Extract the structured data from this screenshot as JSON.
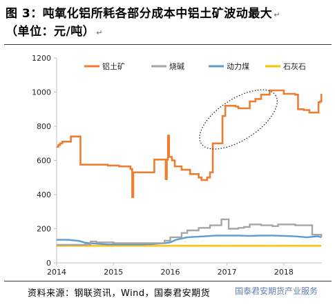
{
  "title": {
    "line1": "图 3：吨氧化铝所耗各部分成本中铝土矿波动最大",
    "line2": "（单位：元/吨）",
    "mark": "↵"
  },
  "source": "资料来源：钢联资讯，Wind，国泰君安期货",
  "watermark": "国泰君安期货产业服务",
  "chart_data": {
    "type": "line",
    "xlim": [
      2014.0,
      2018.67
    ],
    "ylim": [
      0,
      1200
    ],
    "x_ticks": [
      2014,
      2015,
      2016,
      2017,
      2018
    ],
    "x_tick_labels": [
      "2014",
      "2015",
      "2016",
      "2017",
      "2018"
    ],
    "y_ticks": [
      0,
      200,
      400,
      600,
      800,
      1000,
      1200
    ],
    "y_tick_labels": [
      "0",
      "200",
      "400",
      "600",
      "800",
      "1000",
      "1200"
    ],
    "legend_position": "top",
    "series": [
      {
        "name": "铝土矿",
        "color": "#ED7D31",
        "step": true,
        "points": [
          [
            2014.0,
            680
          ],
          [
            2014.03,
            690
          ],
          [
            2014.06,
            700
          ],
          [
            2014.1,
            710
          ],
          [
            2014.25,
            740
          ],
          [
            2014.4,
            740
          ],
          [
            2014.42,
            575
          ],
          [
            2014.8,
            575
          ],
          [
            2014.9,
            570
          ],
          [
            2015.1,
            565
          ],
          [
            2015.3,
            550
          ],
          [
            2015.33,
            385
          ],
          [
            2015.35,
            530
          ],
          [
            2015.7,
            530
          ],
          [
            2015.72,
            605
          ],
          [
            2015.9,
            605
          ],
          [
            2015.92,
            490
          ],
          [
            2015.94,
            605
          ],
          [
            2015.96,
            745
          ],
          [
            2015.98,
            620
          ],
          [
            2016.03,
            600
          ],
          [
            2016.08,
            565
          ],
          [
            2016.2,
            545
          ],
          [
            2016.35,
            520
          ],
          [
            2016.5,
            500
          ],
          [
            2016.55,
            485
          ],
          [
            2016.65,
            500
          ],
          [
            2016.7,
            530
          ],
          [
            2016.75,
            700
          ],
          [
            2016.9,
            700
          ],
          [
            2016.92,
            860
          ],
          [
            2016.97,
            920
          ],
          [
            2017.15,
            915
          ],
          [
            2017.2,
            905
          ],
          [
            2017.4,
            945
          ],
          [
            2017.5,
            960
          ],
          [
            2017.6,
            985
          ],
          [
            2017.75,
            1010
          ],
          [
            2017.95,
            1010
          ],
          [
            2018.0,
            990
          ],
          [
            2018.2,
            985
          ],
          [
            2018.25,
            900
          ],
          [
            2018.35,
            895
          ],
          [
            2018.45,
            880
          ],
          [
            2018.6,
            880
          ],
          [
            2018.61,
            940
          ],
          [
            2018.64,
            945
          ],
          [
            2018.66,
            990
          ]
        ]
      },
      {
        "name": "烧碱",
        "color": "#A5A5A5",
        "step": true,
        "points": [
          [
            2014.0,
            105
          ],
          [
            2014.2,
            105
          ],
          [
            2014.5,
            108
          ],
          [
            2014.6,
            125
          ],
          [
            2014.7,
            120
          ],
          [
            2015.0,
            115
          ],
          [
            2015.4,
            115
          ],
          [
            2015.8,
            115
          ],
          [
            2015.9,
            130
          ],
          [
            2016.0,
            150
          ],
          [
            2016.2,
            175
          ],
          [
            2016.3,
            190
          ],
          [
            2016.5,
            205
          ],
          [
            2016.7,
            220
          ],
          [
            2016.9,
            255
          ],
          [
            2017.0,
            255
          ],
          [
            2017.03,
            200
          ],
          [
            2017.2,
            205
          ],
          [
            2017.3,
            210
          ],
          [
            2017.4,
            225
          ],
          [
            2017.6,
            220
          ],
          [
            2017.8,
            215
          ],
          [
            2017.9,
            225
          ],
          [
            2018.0,
            225
          ],
          [
            2018.2,
            220
          ],
          [
            2018.45,
            220
          ],
          [
            2018.5,
            165
          ],
          [
            2018.6,
            165
          ],
          [
            2018.66,
            150
          ]
        ]
      },
      {
        "name": "动力煤",
        "color": "#5B9BD5",
        "step": false,
        "points": [
          [
            2014.0,
            135
          ],
          [
            2014.2,
            135
          ],
          [
            2014.4,
            128
          ],
          [
            2014.5,
            118
          ],
          [
            2014.7,
            112
          ],
          [
            2014.9,
            108
          ],
          [
            2015.2,
            108
          ],
          [
            2015.5,
            108
          ],
          [
            2015.7,
            110
          ],
          [
            2015.9,
            115
          ],
          [
            2016.0,
            120
          ],
          [
            2016.1,
            135
          ],
          [
            2016.3,
            150
          ],
          [
            2016.6,
            155
          ],
          [
            2016.8,
            160
          ],
          [
            2017.0,
            160
          ],
          [
            2017.2,
            160
          ],
          [
            2017.4,
            158
          ],
          [
            2017.6,
            160
          ],
          [
            2017.8,
            160
          ],
          [
            2018.0,
            158
          ],
          [
            2018.2,
            155
          ],
          [
            2018.4,
            150
          ],
          [
            2018.6,
            155
          ],
          [
            2018.66,
            150
          ]
        ]
      },
      {
        "name": "石灰石",
        "color": "#FFC000",
        "step": false,
        "points": [
          [
            2014.0,
            100
          ],
          [
            2018.66,
            100
          ]
        ]
      }
    ],
    "annotation": {
      "shape": "dotted-ellipse",
      "center": [
        2017.2,
        840
      ],
      "radius_x_years": 0.78,
      "radius_y_value": 120,
      "rotation_deg": -33
    }
  }
}
